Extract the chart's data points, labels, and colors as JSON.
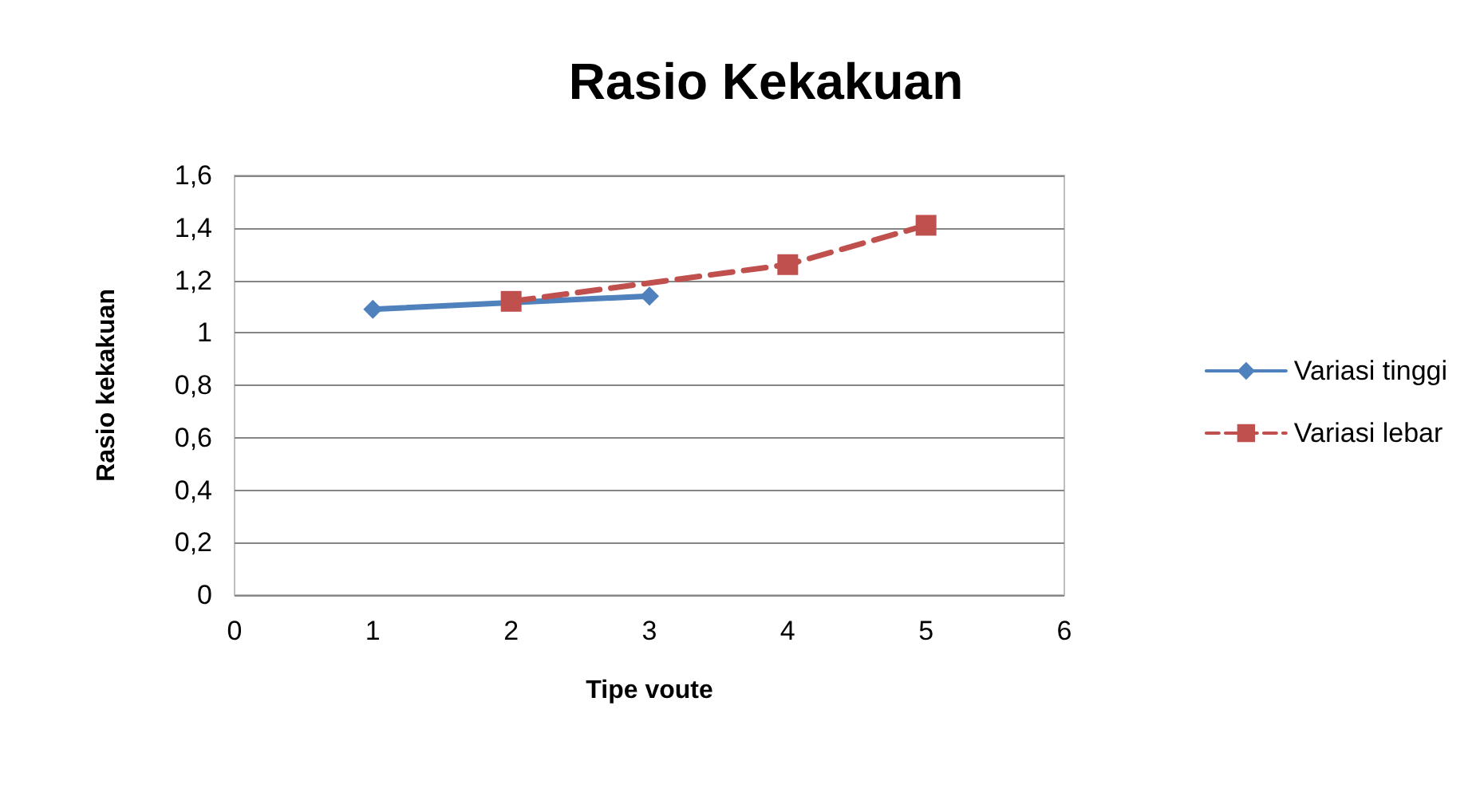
{
  "chart_data": {
    "type": "line",
    "title": "Rasio Kekakuan",
    "xlabel": "Tipe voute",
    "ylabel": "Rasio kekakuan",
    "series": [
      {
        "name": "Variasi tinggi",
        "color": "#4f81bd",
        "x": [
          1,
          3
        ],
        "values": [
          1.09,
          1.14
        ],
        "marker": "diamond",
        "line_style": "solid"
      },
      {
        "name": "Variasi lebar",
        "color": "#c0504d",
        "x": [
          2,
          4,
          5
        ],
        "values": [
          1.12,
          1.26,
          1.41
        ],
        "marker": "square",
        "line_style": "dashed"
      }
    ],
    "xlim": [
      0,
      6
    ],
    "xticks": [
      0,
      1,
      2,
      3,
      4,
      5,
      6
    ],
    "ylim": [
      0,
      1.6
    ],
    "yticks": [
      0,
      {
        "value": 0.2,
        "label": "0,2"
      },
      {
        "value": 0.4,
        "label": "0,4"
      },
      {
        "value": 0.6,
        "label": "0,6"
      },
      {
        "value": 0.8,
        "label": "0,8"
      },
      1,
      {
        "value": 1.2,
        "label": "1,2"
      },
      {
        "value": 1.4,
        "label": "1,4"
      },
      {
        "value": 1.6,
        "label": "1,6"
      }
    ],
    "grid": "y",
    "legend": "right"
  }
}
